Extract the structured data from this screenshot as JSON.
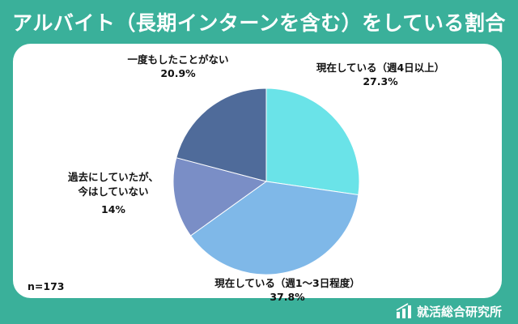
{
  "title": "アルバイト（長期インターンを含む）をしている割合",
  "sample_size": "n=173",
  "logo": {
    "text": "就活総合研究所",
    "icon": "bar-chart-icon"
  },
  "colors": {
    "background": "#3ab09a",
    "card": "#ffffff",
    "slices": [
      "#6ae3e8",
      "#7fb8e8",
      "#7a8ec6",
      "#4f6b9a"
    ]
  },
  "chart_data": {
    "type": "pie",
    "title": "アルバイト（長期インターンを含む）をしている割合",
    "slices": [
      {
        "label": "現在している（週4日以上）",
        "value": 27.3,
        "value_label": "27.3%"
      },
      {
        "label": "現在している（週1〜3日程度）",
        "value": 37.8,
        "value_label": "37.8%"
      },
      {
        "label": "過去にしていたが、\n今はしていない",
        "value": 14.0,
        "value_label": "14%"
      },
      {
        "label": "一度もしたことがない",
        "value": 20.9,
        "value_label": "20.9%"
      }
    ],
    "start_angle": "12 o'clock",
    "direction": "clockwise",
    "legend": "none"
  }
}
